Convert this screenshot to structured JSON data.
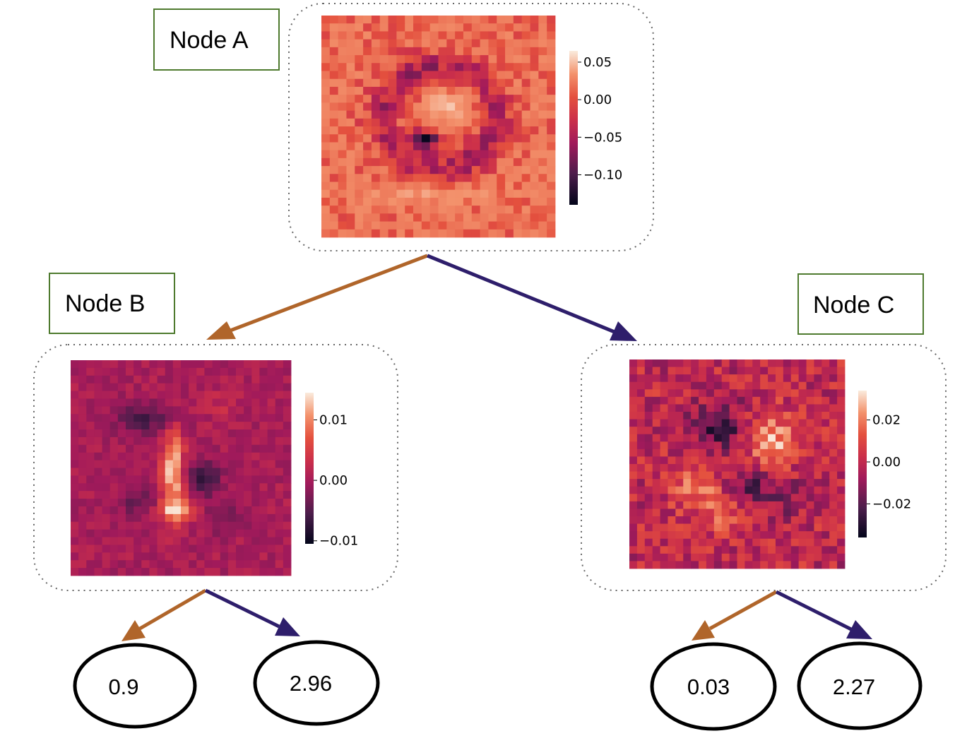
{
  "colors": {
    "left_edge": "#B0652A",
    "right_edge": "#2E1E6B",
    "label_box_border": "#4E7A2E",
    "heatmap_colormap": "rocket"
  },
  "nodes": [
    {
      "id": "a",
      "label": "Node A",
      "colorbar": {
        "ticks": [
          "0.05",
          "0.00",
          "−0.05",
          "−0.10"
        ],
        "tick_values": [
          0.05,
          0.0,
          -0.05,
          -0.1
        ],
        "range": [
          -0.14,
          0.065
        ]
      },
      "heatmap_base_value": 0.022,
      "heatmap_seed": 11,
      "heatmap_pattern": "ring"
    },
    {
      "id": "b",
      "label": "Node B",
      "colorbar": {
        "ticks": [
          "0.01",
          "0.00",
          "−0.01"
        ],
        "tick_values": [
          0.01,
          0.0,
          -0.01
        ],
        "range": [
          -0.0105,
          0.0145
        ]
      },
      "heatmap_base_value": 0.0,
      "heatmap_seed": 23,
      "heatmap_pattern": "two"
    },
    {
      "id": "c",
      "label": "Node C",
      "colorbar": {
        "ticks": [
          "0.02",
          "0.00",
          "−0.02"
        ],
        "tick_values": [
          0.02,
          0.0,
          -0.02
        ],
        "range": [
          -0.036,
          0.034
        ]
      },
      "heatmap_base_value": 0.0,
      "heatmap_seed": 37,
      "heatmap_pattern": "blob"
    }
  ],
  "leaves": [
    {
      "value": "0.9",
      "parent": "b",
      "side": "left"
    },
    {
      "value": "2.96",
      "parent": "b",
      "side": "right"
    },
    {
      "value": "0.03",
      "parent": "c",
      "side": "left"
    },
    {
      "value": "2.27",
      "parent": "c",
      "side": "right"
    }
  ]
}
